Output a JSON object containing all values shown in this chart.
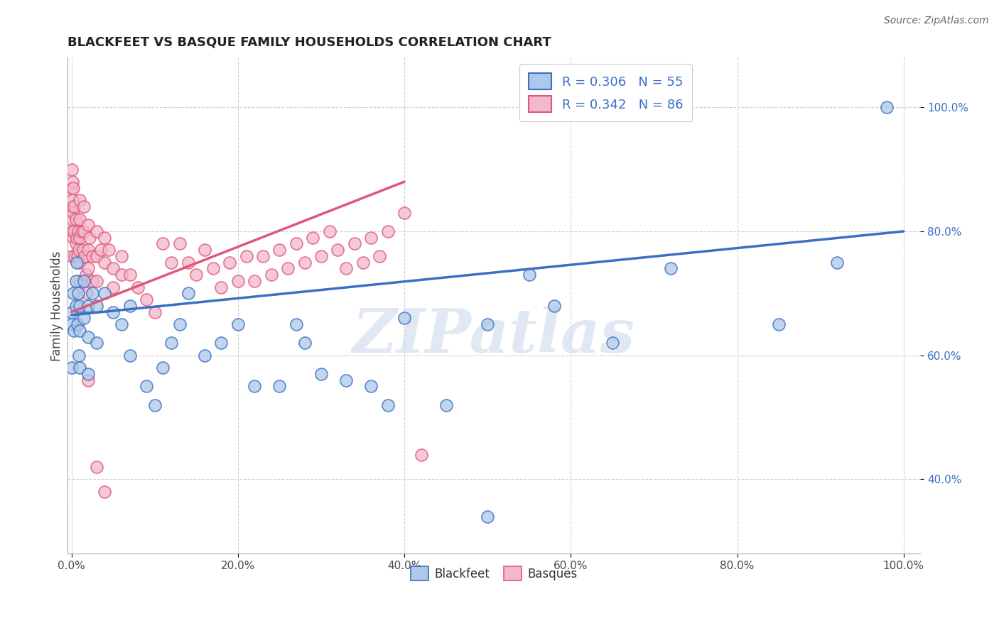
{
  "title": "BLACKFEET VS BASQUE FAMILY HOUSEHOLDS CORRELATION CHART",
  "source_text": "Source: ZipAtlas.com",
  "ylabel": "Family Households",
  "xlim": [
    -0.005,
    1.02
  ],
  "ylim": [
    0.28,
    1.08
  ],
  "xticks": [
    0.0,
    0.2,
    0.4,
    0.6,
    0.8,
    1.0
  ],
  "xticklabels": [
    "0.0%",
    "20.0%",
    "40.0%",
    "60.0%",
    "80.0%",
    "100.0%"
  ],
  "yticks": [
    0.4,
    0.6,
    0.8,
    1.0
  ],
  "yticklabels": [
    "40.0%",
    "60.0%",
    "80.0%",
    "100.0%"
  ],
  "blackfeet_color": "#adc8e8",
  "basque_color": "#f2b8cc",
  "trend_blue": "#3a6fc4",
  "trend_pink": "#e05878",
  "watermark": "ZIPatlas",
  "legend_r_blue": "R = 0.306",
  "legend_n_blue": "N = 55",
  "legend_r_pink": "R = 0.342",
  "legend_n_pink": "N = 86",
  "blue_trend_x": [
    0.0,
    1.0
  ],
  "blue_trend_y": [
    0.665,
    0.8
  ],
  "pink_trend_x": [
    0.0,
    0.4
  ],
  "pink_trend_y": [
    0.67,
    0.88
  ],
  "blackfeet_x": [
    0.0,
    0.0,
    0.0,
    0.002,
    0.003,
    0.005,
    0.005,
    0.006,
    0.007,
    0.008,
    0.009,
    0.01,
    0.01,
    0.01,
    0.015,
    0.015,
    0.02,
    0.02,
    0.02,
    0.025,
    0.03,
    0.03,
    0.04,
    0.05,
    0.06,
    0.07,
    0.07,
    0.09,
    0.1,
    0.11,
    0.12,
    0.13,
    0.14,
    0.16,
    0.18,
    0.2,
    0.22,
    0.25,
    0.27,
    0.28,
    0.3,
    0.33,
    0.36,
    0.38,
    0.4,
    0.45,
    0.5,
    0.5,
    0.55,
    0.58,
    0.65,
    0.72,
    0.85,
    0.92,
    0.98
  ],
  "blackfeet_y": [
    0.67,
    0.65,
    0.58,
    0.7,
    0.64,
    0.72,
    0.68,
    0.75,
    0.65,
    0.7,
    0.6,
    0.68,
    0.64,
    0.58,
    0.72,
    0.66,
    0.68,
    0.63,
    0.57,
    0.7,
    0.68,
    0.62,
    0.7,
    0.67,
    0.65,
    0.68,
    0.6,
    0.55,
    0.52,
    0.58,
    0.62,
    0.65,
    0.7,
    0.6,
    0.62,
    0.65,
    0.55,
    0.55,
    0.65,
    0.62,
    0.57,
    0.56,
    0.55,
    0.52,
    0.66,
    0.52,
    0.65,
    0.34,
    0.73,
    0.68,
    0.62,
    0.74,
    0.65,
    0.75,
    1.0
  ],
  "basque_x": [
    0.0,
    0.0,
    0.0,
    0.0,
    0.0,
    0.001,
    0.001,
    0.001,
    0.002,
    0.002,
    0.002,
    0.003,
    0.003,
    0.004,
    0.005,
    0.005,
    0.006,
    0.007,
    0.008,
    0.009,
    0.01,
    0.01,
    0.01,
    0.01,
    0.01,
    0.012,
    0.014,
    0.015,
    0.015,
    0.016,
    0.017,
    0.018,
    0.02,
    0.02,
    0.02,
    0.022,
    0.025,
    0.025,
    0.03,
    0.03,
    0.03,
    0.035,
    0.04,
    0.04,
    0.045,
    0.05,
    0.05,
    0.06,
    0.06,
    0.07,
    0.08,
    0.09,
    0.1,
    0.11,
    0.12,
    0.13,
    0.14,
    0.15,
    0.16,
    0.17,
    0.18,
    0.19,
    0.2,
    0.21,
    0.22,
    0.23,
    0.24,
    0.25,
    0.26,
    0.27,
    0.28,
    0.29,
    0.3,
    0.31,
    0.32,
    0.33,
    0.34,
    0.35,
    0.36,
    0.37,
    0.38,
    0.4,
    0.42,
    0.02,
    0.03,
    0.04
  ],
  "basque_y": [
    0.9,
    0.87,
    0.84,
    0.8,
    0.76,
    0.88,
    0.85,
    0.82,
    0.87,
    0.83,
    0.79,
    0.84,
    0.8,
    0.76,
    0.82,
    0.78,
    0.79,
    0.76,
    0.8,
    0.77,
    0.85,
    0.82,
    0.79,
    0.75,
    0.72,
    0.8,
    0.77,
    0.84,
    0.8,
    0.76,
    0.73,
    0.7,
    0.81,
    0.77,
    0.74,
    0.79,
    0.76,
    0.72,
    0.8,
    0.76,
    0.72,
    0.77,
    0.79,
    0.75,
    0.77,
    0.74,
    0.71,
    0.76,
    0.73,
    0.73,
    0.71,
    0.69,
    0.67,
    0.78,
    0.75,
    0.78,
    0.75,
    0.73,
    0.77,
    0.74,
    0.71,
    0.75,
    0.72,
    0.76,
    0.72,
    0.76,
    0.73,
    0.77,
    0.74,
    0.78,
    0.75,
    0.79,
    0.76,
    0.8,
    0.77,
    0.74,
    0.78,
    0.75,
    0.79,
    0.76,
    0.8,
    0.83,
    0.44,
    0.56,
    0.42,
    0.38
  ]
}
